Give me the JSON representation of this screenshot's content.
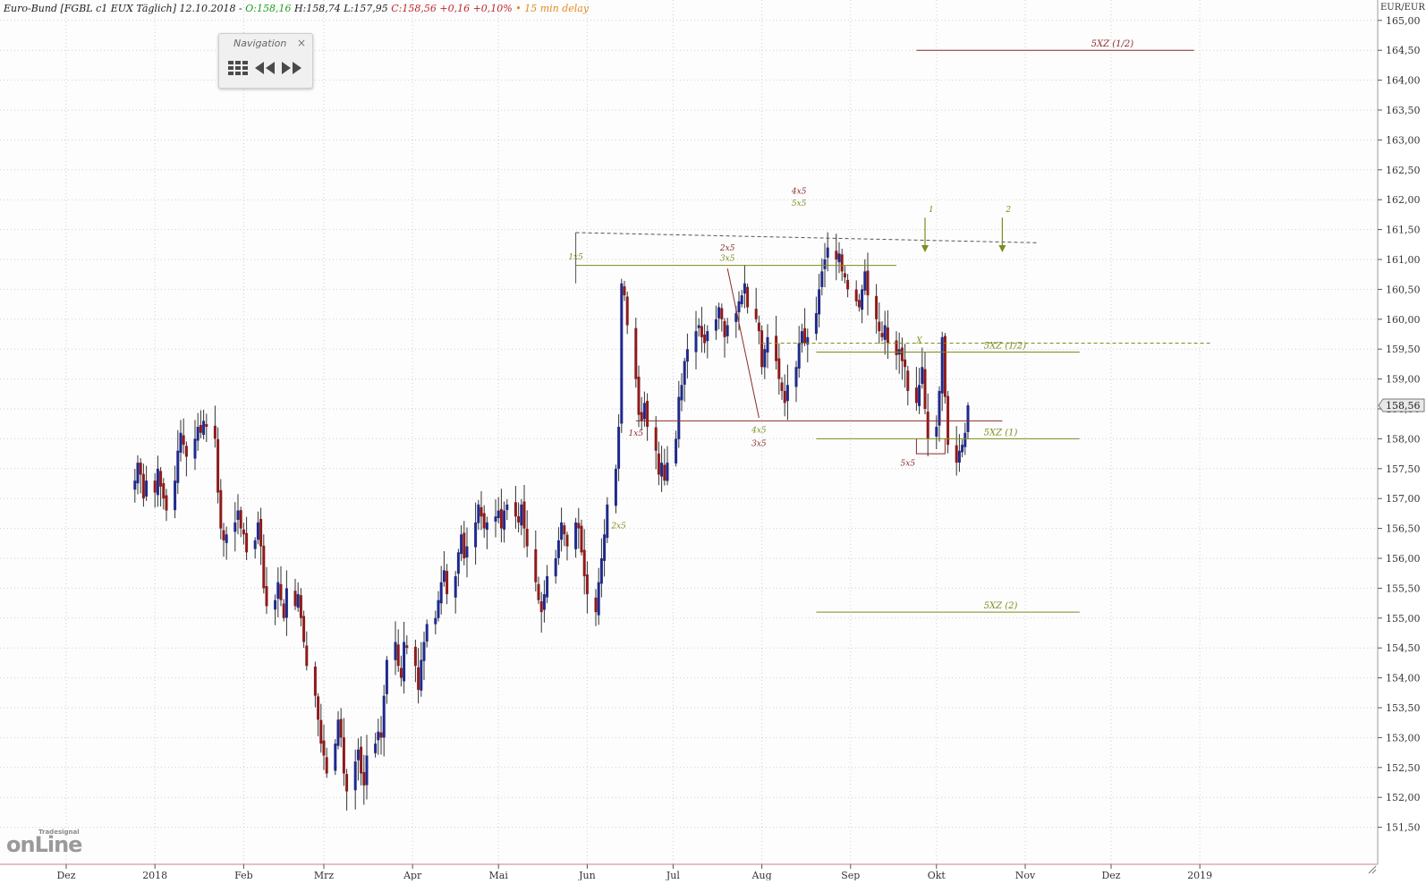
{
  "header": {
    "instrument": "Euro-Bund [FGBL c1 EUX Täglich] 12.10.2018 -",
    "open": "O:158,16",
    "high": "H:158,74",
    "low": "L:157,95",
    "close": "C:158,56 +0,16 +0,10%",
    "delay": "• 15 min delay"
  },
  "navigation": {
    "title": "Navigation",
    "close_glyph": "×",
    "buttons": [
      "grid-icon",
      "rewind-icon",
      "fast-forward-icon"
    ]
  },
  "logo": {
    "small": "Tradesignal",
    "big": "onLine"
  },
  "colors": {
    "bull": "#1f2a8c",
    "bear": "#8e1b1b",
    "olive": "#7d8c1f",
    "maroon": "#8b2b2b",
    "grid": "#d0d0d0"
  },
  "chart_data": {
    "type": "candlestick",
    "yunit": "EUR/EUR",
    "last_price": "158,56",
    "ylim": [
      151.0,
      165.4
    ],
    "y_ticks": [
      "151,50",
      "152,00",
      "152,50",
      "153,00",
      "153,50",
      "154,00",
      "154,50",
      "155,00",
      "155,50",
      "156,00",
      "156,50",
      "157,00",
      "157,50",
      "158,00",
      "158,50",
      "159,00",
      "159,50",
      "160,00",
      "160,50",
      "161,00",
      "161,50",
      "162,00",
      "162,50",
      "163,00",
      "163,50",
      "164,00",
      "164,50",
      "165,00"
    ],
    "x_ticks": [
      {
        "date": "2017-12-01",
        "label": "Dez"
      },
      {
        "date": "2018-01-01",
        "label": "2018"
      },
      {
        "date": "2018-02-01",
        "label": "Feb"
      },
      {
        "date": "2018-03-01",
        "label": "Mrz"
      },
      {
        "date": "2018-04-01",
        "label": "Apr"
      },
      {
        "date": "2018-05-01",
        "label": "Mai"
      },
      {
        "date": "2018-06-01",
        "label": "Jun"
      },
      {
        "date": "2018-07-01",
        "label": "Jul"
      },
      {
        "date": "2018-08-01",
        "label": "Aug"
      },
      {
        "date": "2018-09-01",
        "label": "Sep"
      },
      {
        "date": "2018-10-01",
        "label": "Okt"
      },
      {
        "date": "2018-11-01",
        "label": "Nov"
      },
      {
        "date": "2018-12-01",
        "label": "Dez"
      },
      {
        "date": "2019-01-01",
        "label": "2019"
      }
    ],
    "series_start": "2017-11-13",
    "series_end": "2018-10-12",
    "closes": [
      157.3,
      157.6,
      157.4,
      157.0,
      157.3,
      157.1,
      157.5,
      157.2,
      157.0,
      156.8,
      157.3,
      157.8,
      158.1,
      157.9,
      157.7,
      158.0,
      158.2,
      158.1,
      158.3,
      158.2,
      158.0,
      157.1,
      156.5,
      156.3,
      156.4,
      156.6,
      156.8,
      156.5,
      156.4,
      156.1,
      156.3,
      156.6,
      156.2,
      155.5,
      155.2,
      155.3,
      155.6,
      155.3,
      155.0,
      155.5,
      155.2,
      155.4,
      155.0,
      154.6,
      154.2,
      153.7,
      153.3,
      152.9,
      152.7,
      152.4,
      152.9,
      153.3,
      153.0,
      152.4,
      152.1,
      152.6,
      152.8,
      152.4,
      152.2,
      152.7,
      152.9,
      153.1,
      153.0,
      153.7,
      154.3,
      154.6,
      154.2,
      154.0,
      154.6,
      154.5,
      154.2,
      153.8,
      154.3,
      154.6,
      154.9,
      155.0,
      155.3,
      155.6,
      155.8,
      155.4,
      155.7,
      156.1,
      156.4,
      156.0,
      156.2,
      156.6,
      156.9,
      156.7,
      156.5,
      156.6,
      156.7,
      156.8,
      156.5,
      156.8,
      156.9,
      156.7,
      156.6,
      156.9,
      156.5,
      156.2,
      155.6,
      155.3,
      155.1,
      155.4,
      155.7,
      156.0,
      156.3,
      156.6,
      156.4,
      156.2,
      156.6,
      156.5,
      156.1,
      155.7,
      155.4,
      155.1,
      155.6,
      156.0,
      156.4,
      156.9,
      157.5,
      158.2,
      160.6,
      160.4,
      159.9,
      159.0,
      158.4,
      158.3,
      158.6,
      158.2,
      157.8,
      157.4,
      157.6,
      157.3,
      157.6,
      158.0,
      158.7,
      158.9,
      159.3,
      159.5,
      159.8,
      159.9,
      159.7,
      159.6,
      159.8,
      160.0,
      160.2,
      160.0,
      159.7,
      159.9,
      160.1,
      160.3,
      160.4,
      160.6,
      160.2,
      160.0,
      159.8,
      159.2,
      159.5,
      159.7,
      159.3,
      159.0,
      158.8,
      158.6,
      158.9,
      159.2,
      159.6,
      159.8,
      159.6,
      159.7,
      160.1,
      160.5,
      160.8,
      161.0,
      161.2,
      161.0,
      161.1,
      160.8,
      160.7,
      160.5,
      160.3,
      160.2,
      160.5,
      160.8,
      160.4,
      160.0,
      159.8,
      159.7,
      159.9,
      159.6,
      159.4,
      159.5,
      159.3,
      159.2,
      158.8,
      158.6,
      158.9,
      159.2,
      158.5,
      158.0,
      158.2,
      158.8,
      159.7,
      158.7,
      157.9,
      157.6,
      157.8,
      157.9,
      158.1,
      158.56
    ]
  },
  "annotations": {
    "wave_labels": [
      {
        "date": "2018-05-28",
        "price": 161.0,
        "text": "1x5",
        "color": "olive"
      },
      {
        "date": "2018-06-12",
        "price": 156.5,
        "text": "2x5",
        "color": "olive"
      },
      {
        "date": "2018-07-20",
        "price": 161.15,
        "text": "2x5",
        "color": "maroon"
      },
      {
        "date": "2018-07-20",
        "price": 160.98,
        "text": "3x5",
        "color": "olive"
      },
      {
        "date": "2018-07-31",
        "price": 158.1,
        "text": "4x5",
        "color": "olive"
      },
      {
        "date": "2018-07-31",
        "price": 157.88,
        "text": "3x5",
        "color": "maroon"
      },
      {
        "date": "2018-08-14",
        "price": 162.1,
        "text": "4x5",
        "color": "maroon"
      },
      {
        "date": "2018-08-14",
        "price": 161.9,
        "text": "5x5",
        "color": "olive"
      },
      {
        "date": "2018-06-18",
        "price": 158.05,
        "text": "1x5",
        "color": "maroon"
      },
      {
        "date": "2018-09-21",
        "price": 157.55,
        "text": "5x5",
        "color": "maroon"
      },
      {
        "date": "2018-09-25",
        "price": 159.6,
        "text": "X",
        "color": "olive"
      }
    ],
    "hlines": [
      {
        "start": "2018-09-24",
        "end": "2018-12-30",
        "price": 164.5,
        "label": "5XZ (1/2)",
        "color": "maroon",
        "dashed": false
      },
      {
        "start": "2018-08-20",
        "end": "2018-11-20",
        "price": 159.45,
        "label": "5XZ (1/2)",
        "color": "olive",
        "dashed": false
      },
      {
        "start": "2018-08-20",
        "end": "2018-11-20",
        "price": 158.0,
        "label": "5XZ (1)",
        "color": "olive",
        "dashed": false
      },
      {
        "start": "2018-08-20",
        "end": "2018-11-20",
        "price": 155.1,
        "label": "5XZ (2)",
        "color": "olive",
        "dashed": false
      },
      {
        "start": "2018-05-28",
        "end": "2018-09-17",
        "price": 160.9,
        "label": "",
        "color": "olive",
        "dashed": false
      },
      {
        "start": "2018-06-18",
        "end": "2018-10-24",
        "price": 158.3,
        "label": "",
        "color": "maroon",
        "dashed": false
      },
      {
        "start": "2018-08-01",
        "end": "2019-01-05",
        "price": 159.6,
        "label": "",
        "color": "olive",
        "dashed": true
      }
    ],
    "arrows": [
      {
        "date": "2018-09-27",
        "from": 161.7,
        "to": 161.15,
        "label": "1"
      },
      {
        "date": "2018-10-24",
        "from": 161.7,
        "to": 161.15,
        "label": "2"
      }
    ]
  }
}
